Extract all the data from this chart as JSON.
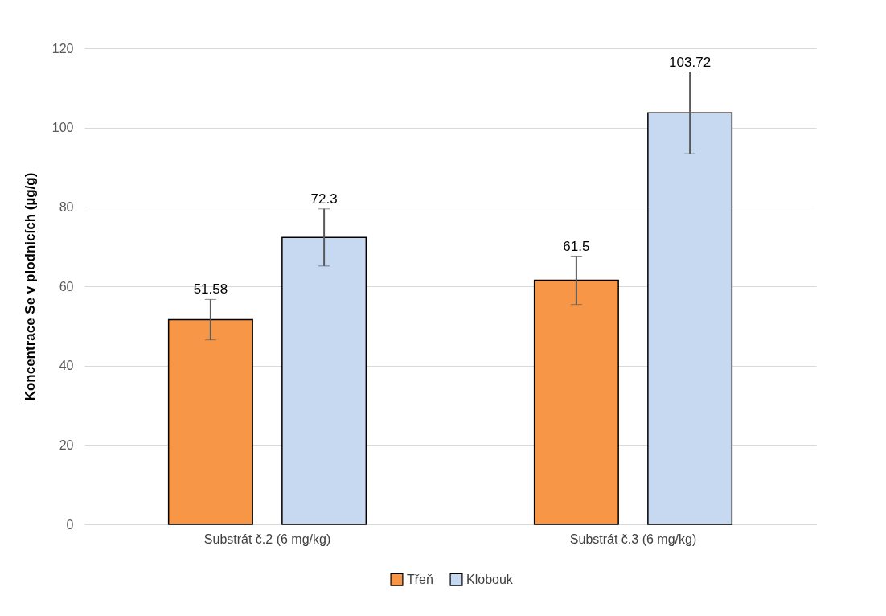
{
  "chart_data": {
    "type": "bar",
    "ylabel": "Koncentrace Se v plodnicích (µg/g)",
    "categories": [
      "Substrát č.2 (6 mg/kg)",
      "Substrát č.3 (6 mg/kg)"
    ],
    "series": [
      {
        "name": "Třeň",
        "color": "#f79646",
        "values": [
          51.58,
          61.5
        ],
        "errors": [
          5.1,
          6.1
        ]
      },
      {
        "name": "Klobouk",
        "color": "#c6d9f1",
        "values": [
          72.3,
          103.72
        ],
        "errors": [
          7.2,
          10.3
        ]
      }
    ],
    "ylim": [
      0,
      120
    ],
    "yticks": [
      0,
      20,
      40,
      60,
      80,
      100,
      120
    ],
    "grid": "y",
    "legend": "bottom",
    "data_labels": true
  }
}
